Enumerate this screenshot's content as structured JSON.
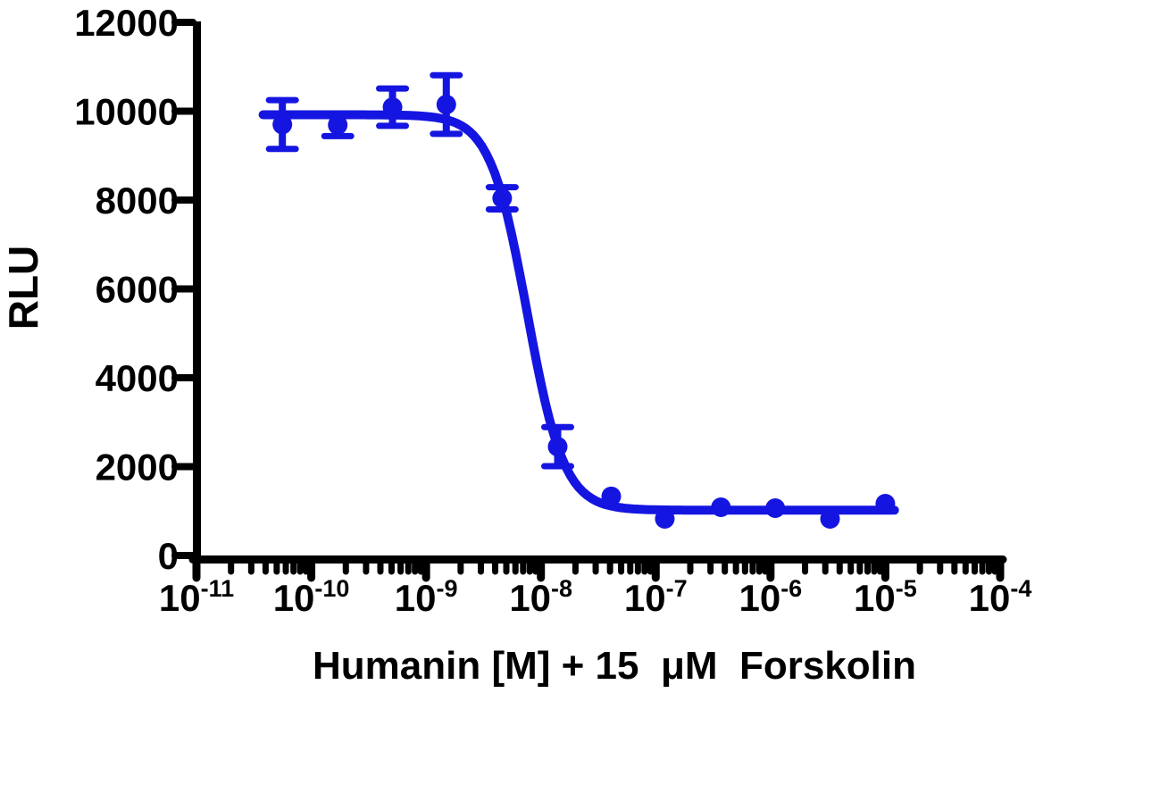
{
  "figure": {
    "background_color": "#ffffff"
  },
  "chart_data": {
    "type": "scatter",
    "title": "",
    "xlabel": "Humanin [M] + 15  μM  Forskolin",
    "ylabel": "RLU",
    "x_scale": "log10",
    "xlim_log10": [
      -11,
      -4
    ],
    "ylim": [
      0,
      12000
    ],
    "grid": false,
    "legend_position": "none",
    "axis_color": "#000000",
    "series_color": "#1515e1",
    "yticks": [
      0,
      2000,
      4000,
      6000,
      8000,
      10000,
      12000
    ],
    "xtick_exponents": [
      -11,
      -10,
      -9,
      -8,
      -7,
      -6,
      -5,
      -4
    ],
    "xtick_base": "10",
    "minor_tick_mantissas": [
      2,
      3,
      4,
      5,
      6,
      7,
      8,
      9
    ],
    "series": [
      {
        "marker": "circle",
        "error_bar_style": "capped",
        "points": [
          {
            "x_molar": 5.6e-11,
            "rlu": 9700,
            "sem": 550
          },
          {
            "x_molar": 1.7e-10,
            "rlu": 9690,
            "sem": 250
          },
          {
            "x_molar": 5.1e-10,
            "rlu": 10090,
            "sem": 420
          },
          {
            "x_molar": 1.5e-09,
            "rlu": 10150,
            "sem": 660
          },
          {
            "x_molar": 4.6e-09,
            "rlu": 8040,
            "sem": 250
          },
          {
            "x_molar": 1.4e-08,
            "rlu": 2450,
            "sem": 440
          },
          {
            "x_molar": 4.1e-08,
            "rlu": 1330,
            "sem": null
          },
          {
            "x_molar": 1.2e-07,
            "rlu": 825,
            "sem": null
          },
          {
            "x_molar": 3.7e-07,
            "rlu": 1085,
            "sem": null
          },
          {
            "x_molar": 1.1e-06,
            "rlu": 1065,
            "sem": null
          },
          {
            "x_molar": 3.3e-06,
            "rlu": 825,
            "sem": null
          },
          {
            "x_molar": 1e-05,
            "rlu": 1165,
            "sem": null
          }
        ]
      }
    ],
    "fit_curve": {
      "model": "sigmoidal dose-response (4-parameter logistic)",
      "top_rlu": 9920,
      "bottom_rlu": 1020,
      "log10_ic50": -8.12,
      "ic50_molar": 7.6e-09,
      "hill_slope": 2.7,
      "log10_x_range": [
        -10.42,
        -4.92
      ]
    }
  }
}
